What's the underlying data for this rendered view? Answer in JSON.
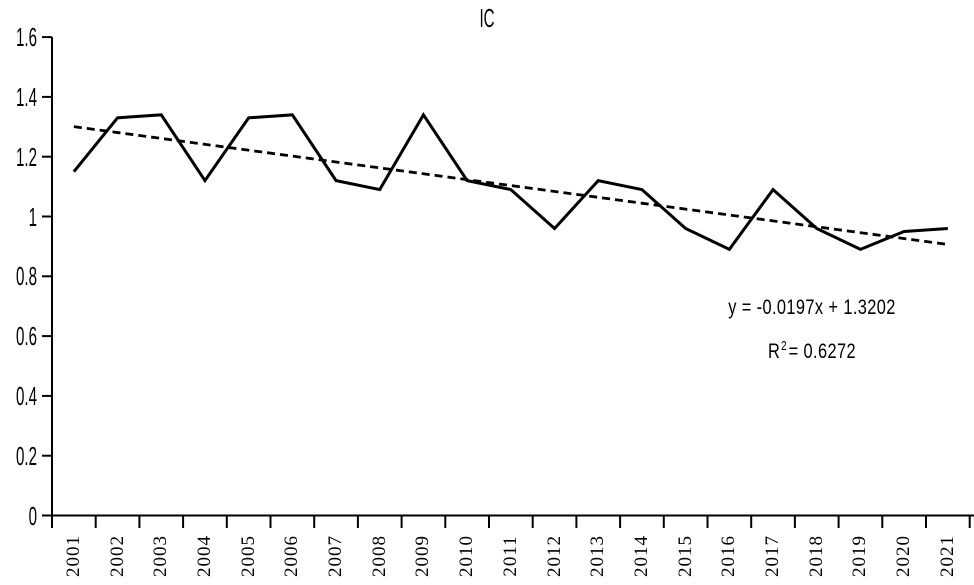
{
  "chart_data": {
    "type": "line",
    "title": "IC",
    "categories": [
      "2001",
      "2002",
      "2003",
      "2004",
      "2005",
      "2006",
      "2007",
      "2008",
      "2009",
      "2010",
      "2011",
      "2012",
      "2013",
      "2014",
      "2015",
      "2016",
      "2017",
      "2018",
      "2019",
      "2020",
      "2021"
    ],
    "series": [
      {
        "name": "IC",
        "color": "#000000",
        "values": [
          1.15,
          1.33,
          1.34,
          1.12,
          1.33,
          1.34,
          1.12,
          1.09,
          1.34,
          1.12,
          1.09,
          0.96,
          1.12,
          1.09,
          0.96,
          0.89,
          1.09,
          0.96,
          0.89,
          0.95,
          0.96
        ]
      }
    ],
    "trendline": {
      "equation": "y = -0.0197x + 1.3202",
      "r_label": "R",
      "r_exponent": "2",
      "r_value": "= 0.6272",
      "slope": -0.0197,
      "intercept": 1.3202,
      "r_squared": 0.6272,
      "style": "dashed",
      "color": "#000000"
    },
    "xlabel": "",
    "ylabel": "",
    "ylim": [
      0,
      1.6
    ],
    "y_ticks": [
      "0",
      "0.2",
      "0.4",
      "0.6",
      "0.8",
      "1",
      "1.2",
      "1.4",
      "1.6"
    ],
    "y_tick_step": 0.2,
    "grid": false,
    "legend_position": "none",
    "background": "#ffffff",
    "axis_color": "#000000"
  }
}
